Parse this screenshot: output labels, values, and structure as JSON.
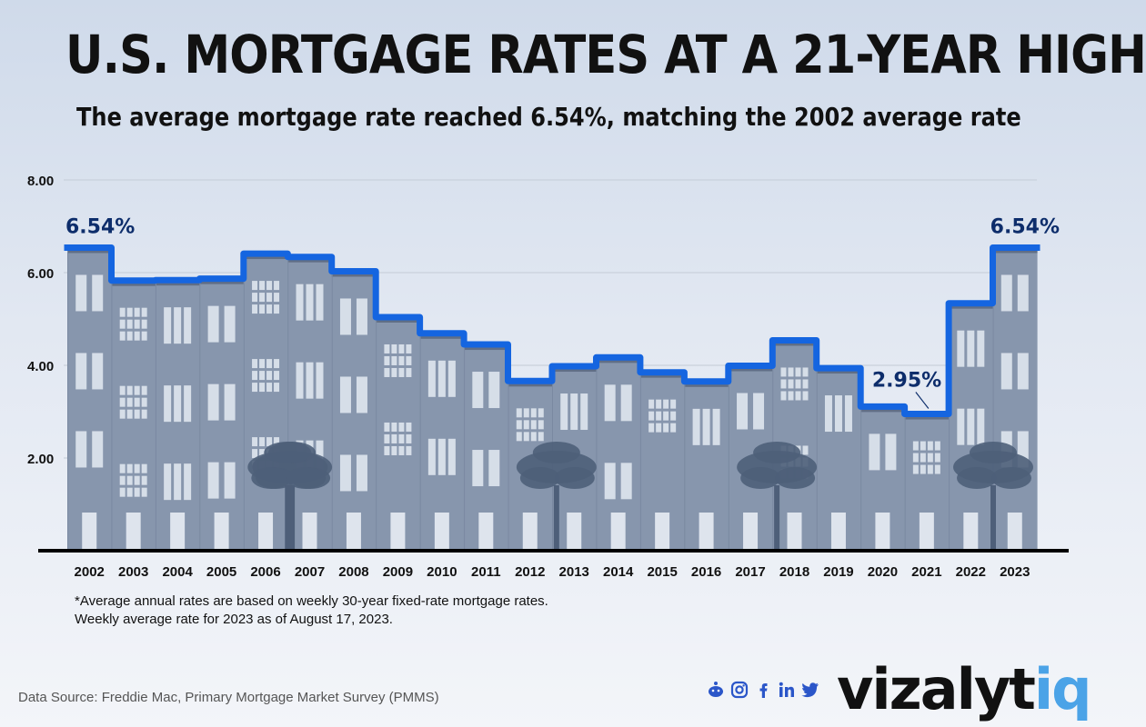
{
  "header": {
    "title": "U.S. MORTGAGE RATES AT A 21-YEAR HIGH",
    "subtitle": "The average mortgage rate reached 6.54%, matching the 2002 average rate"
  },
  "chart_data": {
    "type": "line",
    "step": true,
    "categories": [
      "2002",
      "2003",
      "2004",
      "2005",
      "2006",
      "2007",
      "2008",
      "2009",
      "2010",
      "2011",
      "2012",
      "2013",
      "2014",
      "2015",
      "2016",
      "2017",
      "2018",
      "2019",
      "2020",
      "2021",
      "2022",
      "2023"
    ],
    "values": [
      6.54,
      5.83,
      5.84,
      5.87,
      6.41,
      6.34,
      6.03,
      5.04,
      4.69,
      4.45,
      3.66,
      3.98,
      4.17,
      3.85,
      3.65,
      3.99,
      4.54,
      3.94,
      3.11,
      2.95,
      5.34,
      6.54
    ],
    "ylim": [
      0,
      8
    ],
    "yticks": [
      2,
      4,
      6,
      8
    ],
    "ytick_labels": [
      "2.00",
      "4.00",
      "6.00",
      "8.00"
    ],
    "grid": true,
    "annotations": [
      {
        "label": "6.54%",
        "category": "2002",
        "value": 6.54
      },
      {
        "label": "2.95%",
        "category": "2021",
        "value": 2.95
      },
      {
        "label": "6.54%",
        "category": "2023",
        "value": 6.54
      }
    ],
    "colors": {
      "line": "#1565e0",
      "buildings": "#8796ad",
      "label": "#0d2d6b"
    }
  },
  "footnote": {
    "line1": "*Average annual rates are based on weekly 30-year fixed-rate mortgage rates.",
    "line2": "Weekly average rate for 2023 as of August 17, 2023."
  },
  "source": "Data Source: Freddie Mac, Primary Mortgage Market Survey (PMMS)",
  "social": [
    "reddit-icon",
    "instagram-icon",
    "facebook-icon",
    "linkedin-icon",
    "twitter-icon"
  ],
  "brand": {
    "main": "vizalyt",
    "accent": "iq"
  }
}
